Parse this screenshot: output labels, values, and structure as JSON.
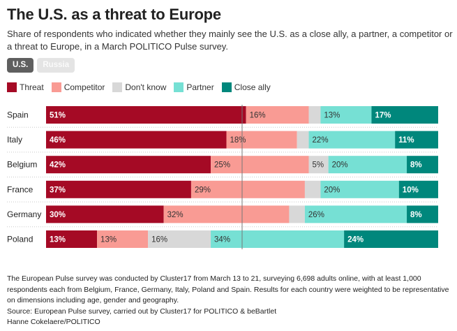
{
  "title": "The U.S. as a threat to Europe",
  "subtitle": "Share of respondents who indicated whether they mainly see the U.S. as a close ally, a partner, a competitor or a threat to Europe, in a March POLITICO Pulse survey.",
  "toggles": [
    {
      "label": "U.S.",
      "active": true
    },
    {
      "label": "Russia",
      "active": false
    }
  ],
  "footer": {
    "note": "The European Pulse survey was conducted by Cluster17 from March 13 to 21, surveying 6,698 adults online, with at least 1,000 respondents each from Belgium, France, Germany, Italy, Poland and Spain. Results for each country were weighted to be representative on dimensions including age, gender and geography.",
    "source": "Source: European Pulse survey, carried out by Cluster17 for POLITICO & beBartlet",
    "credit": "Hanne Cokelaere/POLITICO"
  },
  "chart_data": {
    "type": "bar",
    "orientation": "horizontal-stacked-100",
    "title": "The U.S. as a threat to Europe",
    "categories": [
      "Spain",
      "Italy",
      "Belgium",
      "France",
      "Germany",
      "Poland"
    ],
    "series": [
      {
        "name": "Threat",
        "color": "#a50a25",
        "label_color": "#ffffff",
        "values": [
          51,
          46,
          42,
          37,
          30,
          13
        ]
      },
      {
        "name": "Competitor",
        "color": "#f99b94",
        "label_color": "#333333",
        "values": [
          16,
          18,
          25,
          29,
          32,
          13
        ]
      },
      {
        "name": "Don't know",
        "color": "#d8d8d8",
        "label_color": "#333333",
        "values": [
          3,
          3,
          5,
          4,
          4,
          16
        ]
      },
      {
        "name": "Partner",
        "color": "#76e0d4",
        "label_color": "#333333",
        "values": [
          13,
          22,
          20,
          20,
          26,
          34
        ]
      },
      {
        "name": "Close ally",
        "color": "#00877c",
        "label_color": "#ffffff",
        "values": [
          17,
          11,
          8,
          10,
          8,
          24
        ]
      }
    ],
    "labels": [
      [
        "51%",
        "16%",
        "",
        "13%",
        "17%"
      ],
      [
        "46%",
        "18%",
        "",
        "22%",
        "11%"
      ],
      [
        "42%",
        "25%",
        "5%",
        "20%",
        "8%"
      ],
      [
        "37%",
        "29%",
        "",
        "20%",
        "10%"
      ],
      [
        "30%",
        "32%",
        "",
        "26%",
        "8%"
      ],
      [
        "13%",
        "13%",
        "16%",
        "34%",
        "24%"
      ]
    ],
    "reference_line": 50,
    "xlim": [
      0,
      100
    ],
    "legend": "top-left"
  }
}
